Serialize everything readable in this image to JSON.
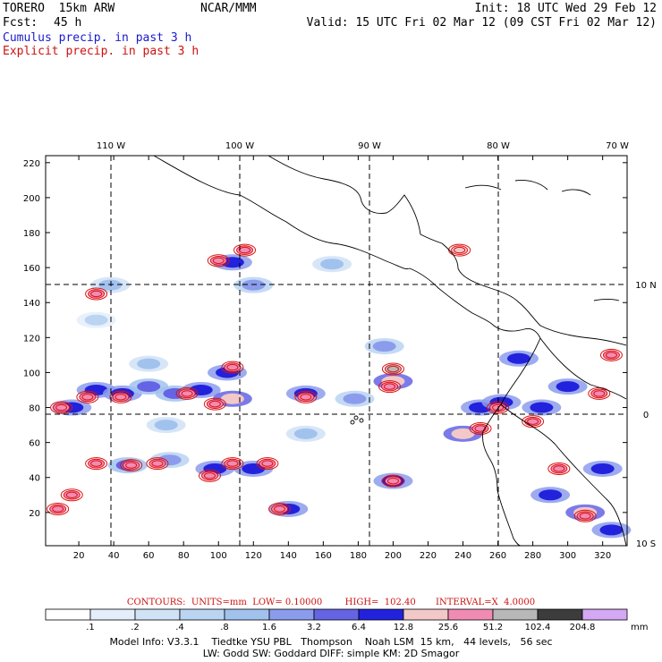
{
  "header": {
    "model": "TORERO  15km ARW",
    "org": "NCAR/MMM",
    "init": "Init: 18 UTC Wed 29 Feb 12",
    "fcst_label": "Fcst:",
    "fcst_value": "45 h",
    "valid": "Valid: 15 UTC Fri 02 Mar 12 (09 CST Fri 02 Mar 12)",
    "cumulus": "Cumulus precip. in past 3 h",
    "explicit": "Explicit precip. in past 3 h"
  },
  "contours_line": "CONTOURS:  UNITS=mm  LOW= 0.10000        HIGH=  102.40       INTERVAL=X  4.0000",
  "model_info_1": "Model Info: V3.3.1    Tiedtke YSU PBL   Thompson    Noah LSM  15 km,   44 levels,   56 sec",
  "model_info_2": "LW: Godd SW: Goddard DIFF: simple KM: 2D Smagor",
  "colors": {
    "cumulus_text": "#1a1acc",
    "explicit_text": "#cc1111",
    "contour": "#dd1111"
  },
  "chart_data": {
    "type": "heatmap",
    "x_ticks": [
      20,
      40,
      60,
      80,
      100,
      120,
      140,
      160,
      180,
      200,
      220,
      240,
      260,
      280,
      300,
      320
    ],
    "y_ticks": [
      20,
      40,
      60,
      80,
      100,
      120,
      140,
      160,
      180,
      200,
      220
    ],
    "xlim": [
      1,
      334
    ],
    "ylim": [
      1,
      224
    ],
    "lon_labels": [
      "110 W",
      "100 W",
      "90 W",
      "80 W",
      "70 W"
    ],
    "lat_labels": [
      "10 N",
      "0",
      "10 S"
    ],
    "grid_x": [
      39,
      113,
      187,
      261
    ],
    "grid_y": [
      76,
      150
    ],
    "colorbar": {
      "labels": [
        ".1",
        ".2",
        ".4",
        ".8",
        "1.6",
        "3.2",
        "6.4",
        "12.8",
        "25.6",
        "51.2",
        "102.4",
        "204.8"
      ],
      "unit": "mm",
      "colors": [
        "#ffffff",
        "#e4eefa",
        "#d0e2f6",
        "#bad4f2",
        "#a2c2ee",
        "#8c9cec",
        "#6464e4",
        "#2222dd",
        "#f2c8c8",
        "#f08cb4",
        "#b8b8b8",
        "#3c3c3c",
        "#d4a8f4"
      ]
    },
    "cumulus_cells": [
      {
        "x": 16,
        "y": 80,
        "v": 6.4
      },
      {
        "x": 30,
        "y": 90,
        "v": 6.4
      },
      {
        "x": 45,
        "y": 88,
        "v": 6.4
      },
      {
        "x": 60,
        "y": 92,
        "v": 3.2
      },
      {
        "x": 75,
        "y": 88,
        "v": 3.2
      },
      {
        "x": 90,
        "y": 90,
        "v": 6.4
      },
      {
        "x": 108,
        "y": 85,
        "v": 12.8
      },
      {
        "x": 105,
        "y": 100,
        "v": 6.4
      },
      {
        "x": 150,
        "y": 88,
        "v": 6.4
      },
      {
        "x": 200,
        "y": 95,
        "v": 12.8
      },
      {
        "x": 195,
        "y": 115,
        "v": 1.6
      },
      {
        "x": 240,
        "y": 65,
        "v": 12.8
      },
      {
        "x": 250,
        "y": 80,
        "v": 6.4
      },
      {
        "x": 262,
        "y": 83,
        "v": 6.4
      },
      {
        "x": 272,
        "y": 108,
        "v": 6.4
      },
      {
        "x": 285,
        "y": 80,
        "v": 6.4
      },
      {
        "x": 300,
        "y": 92,
        "v": 6.4
      },
      {
        "x": 48,
        "y": 47,
        "v": 3.2
      },
      {
        "x": 72,
        "y": 50,
        "v": 1.6
      },
      {
        "x": 98,
        "y": 45,
        "v": 6.4
      },
      {
        "x": 120,
        "y": 45,
        "v": 6.4
      },
      {
        "x": 140,
        "y": 22,
        "v": 6.4
      },
      {
        "x": 200,
        "y": 38,
        "v": 6.4
      },
      {
        "x": 290,
        "y": 30,
        "v": 6.4
      },
      {
        "x": 310,
        "y": 20,
        "v": 12.8
      },
      {
        "x": 108,
        "y": 163,
        "v": 6.4
      },
      {
        "x": 120,
        "y": 150,
        "v": 1.6
      },
      {
        "x": 38,
        "y": 150,
        "v": 0.8
      },
      {
        "x": 165,
        "y": 162,
        "v": 0.8
      },
      {
        "x": 178,
        "y": 85,
        "v": 1.6
      },
      {
        "x": 60,
        "y": 105,
        "v": 0.8
      },
      {
        "x": 30,
        "y": 130,
        "v": 0.4
      },
      {
        "x": 70,
        "y": 70,
        "v": 0.8
      },
      {
        "x": 150,
        "y": 65,
        "v": 0.8
      },
      {
        "x": 320,
        "y": 45,
        "v": 6.4
      },
      {
        "x": 325,
        "y": 10,
        "v": 6.4
      }
    ],
    "explicit_cells": [
      {
        "x": 10,
        "y": 80,
        "v": 25.6
      },
      {
        "x": 25,
        "y": 86,
        "v": 25.6
      },
      {
        "x": 44,
        "y": 86,
        "v": 25.6
      },
      {
        "x": 82,
        "y": 88,
        "v": 25.6
      },
      {
        "x": 98,
        "y": 82,
        "v": 25.6
      },
      {
        "x": 108,
        "y": 103,
        "v": 25.6
      },
      {
        "x": 150,
        "y": 86,
        "v": 25.6
      },
      {
        "x": 198,
        "y": 92,
        "v": 25.6
      },
      {
        "x": 200,
        "y": 102,
        "v": 51.2
      },
      {
        "x": 30,
        "y": 145,
        "v": 25.6
      },
      {
        "x": 100,
        "y": 164,
        "v": 25.6
      },
      {
        "x": 115,
        "y": 170,
        "v": 25.6
      },
      {
        "x": 238,
        "y": 170,
        "v": 12.8
      },
      {
        "x": 30,
        "y": 48,
        "v": 25.6
      },
      {
        "x": 50,
        "y": 47,
        "v": 25.6
      },
      {
        "x": 65,
        "y": 48,
        "v": 25.6
      },
      {
        "x": 95,
        "y": 41,
        "v": 25.6
      },
      {
        "x": 108,
        "y": 48,
        "v": 25.6
      },
      {
        "x": 128,
        "y": 48,
        "v": 25.6
      },
      {
        "x": 135,
        "y": 22,
        "v": 25.6
      },
      {
        "x": 200,
        "y": 38,
        "v": 25.6
      },
      {
        "x": 8,
        "y": 22,
        "v": 25.6
      },
      {
        "x": 16,
        "y": 30,
        "v": 25.6
      },
      {
        "x": 250,
        "y": 68,
        "v": 25.6
      },
      {
        "x": 260,
        "y": 80,
        "v": 25.6
      },
      {
        "x": 280,
        "y": 72,
        "v": 25.6
      },
      {
        "x": 295,
        "y": 45,
        "v": 25.6
      },
      {
        "x": 310,
        "y": 18,
        "v": 25.6
      },
      {
        "x": 325,
        "y": 110,
        "v": 25.6
      },
      {
        "x": 318,
        "y": 88,
        "v": 25.6
      }
    ]
  }
}
